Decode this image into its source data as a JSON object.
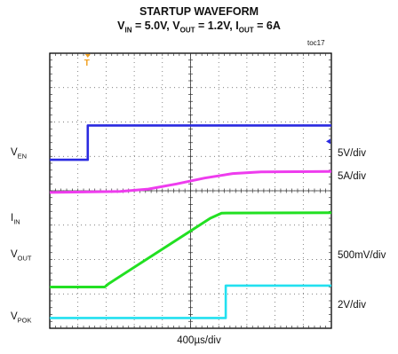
{
  "chart_data": {
    "type": "line",
    "title_line1": "STARTUP WAVEFORM",
    "title_line2": {
      "vin_sym": "V",
      "vin_sub": "IN",
      "vin_val": " = 5.0V, ",
      "vout_sym": "V",
      "vout_sub": "OUT",
      "vout_val": " = 1.2V, ",
      "iout_sym": "I",
      "iout_sub": "OUT",
      "iout_val": " = 6A"
    },
    "figure_id": "toc17",
    "xlabel": "400µs/div",
    "x_divisions": 10,
    "y_divisions": 8,
    "grid": true,
    "trigger_marker": "T",
    "series": [
      {
        "sym": "V",
        "sub": "EN",
        "scale": "5V/div",
        "color": "#2a2ae0",
        "width": 2.6,
        "label_div": 5.05,
        "scale_div": 5.05,
        "points": [
          [
            0,
            4.9
          ],
          [
            1.35,
            4.9
          ],
          [
            1.35,
            5.9
          ],
          [
            10,
            5.9
          ]
        ]
      },
      {
        "sym": "I",
        "sub": "IN",
        "scale": "5A/div",
        "color": "#ee3cee",
        "width": 3.0,
        "label_div": 3.15,
        "scale_div": 4.4,
        "points": [
          [
            0,
            3.95
          ],
          [
            2.5,
            3.98
          ],
          [
            3.5,
            4.05
          ],
          [
            4.5,
            4.2
          ],
          [
            5.5,
            4.37
          ],
          [
            6.5,
            4.5
          ],
          [
            7.5,
            4.55
          ],
          [
            10,
            4.56
          ]
        ]
      },
      {
        "sym": "V",
        "sub": "OUT",
        "scale": "500mV/div",
        "color": "#22e022",
        "width": 3.0,
        "label_div": 2.1,
        "scale_div": 2.1,
        "points": [
          [
            0,
            1.2
          ],
          [
            1.95,
            1.2
          ],
          [
            2.1,
            1.3
          ],
          [
            5.7,
            3.2
          ],
          [
            6.1,
            3.35
          ],
          [
            10,
            3.36
          ]
        ]
      },
      {
        "sym": "V",
        "sub": "POK",
        "scale": "2V/div",
        "color": "#22e0f0",
        "width": 2.6,
        "label_div": 0.28,
        "scale_div": 0.65,
        "points": [
          [
            0,
            0.3
          ],
          [
            6.25,
            0.3
          ],
          [
            6.25,
            1.24
          ],
          [
            10,
            1.24
          ]
        ]
      }
    ]
  }
}
